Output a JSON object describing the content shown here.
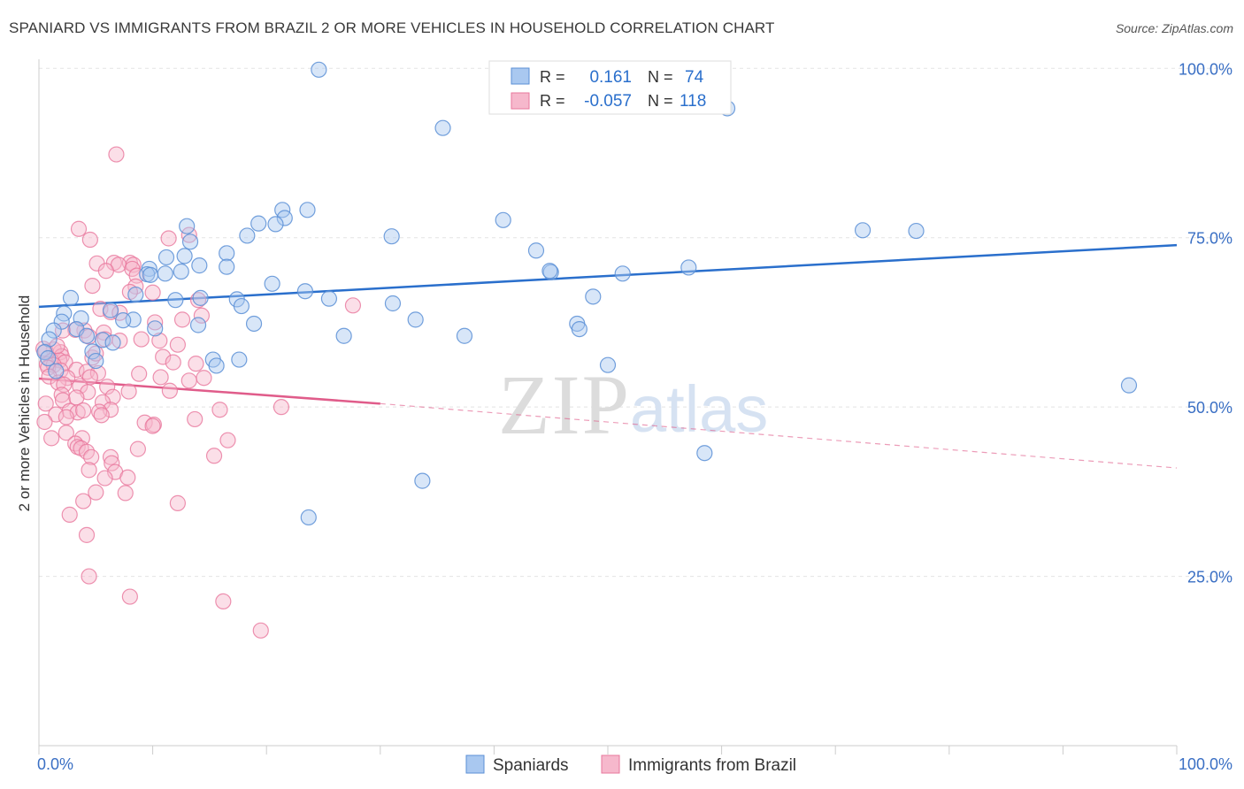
{
  "title": "SPANIARD VS IMMIGRANTS FROM BRAZIL 2 OR MORE VEHICLES IN HOUSEHOLD CORRELATION CHART",
  "source": "Source: ZipAtlas.com",
  "watermark": {
    "zip": "ZIP",
    "atlas": "atlas"
  },
  "colors": {
    "blue_fill": "#a9c8f0",
    "blue_stroke": "#5b8fd6",
    "blue_line": "#2a6fcc",
    "pink_fill": "#f6b8cc",
    "pink_stroke": "#e8779c",
    "pink_line": "#e05c8a",
    "axis_text": "#3a6fc4",
    "grid": "#e3e3e3"
  },
  "stats_box": {
    "rows": [
      {
        "r_label": "R =",
        "r_value": "0.161",
        "n_label": "N =",
        "n_value": "74"
      },
      {
        "r_label": "R =",
        "r_value": "-0.057",
        "n_label": "N =",
        "n_value": "118"
      }
    ]
  },
  "legend": {
    "items": [
      "Spaniards",
      "Immigrants from Brazil"
    ]
  },
  "chart_data": {
    "type": "scatter",
    "title": "SPANIARD VS IMMIGRANTS FROM BRAZIL 2 OR MORE VEHICLES IN HOUSEHOLD CORRELATION CHART",
    "xlabel": "",
    "ylabel": "2 or more Vehicles in Household",
    "xlim": [
      0,
      100
    ],
    "ylim": [
      0,
      105
    ],
    "x_tick_labels": [
      "0.0%",
      "100.0%"
    ],
    "y_tick_labels": [
      "25.0%",
      "50.0%",
      "75.0%",
      "100.0%"
    ],
    "y_ticks": [
      25,
      50,
      75,
      100
    ],
    "grid": true,
    "legend_position": "bottom",
    "series": [
      {
        "name": "Spaniards",
        "r": 0.161,
        "n": 74,
        "trend": {
          "x": [
            0,
            100
          ],
          "y": [
            64.8,
            73.9
          ]
        },
        "points": [
          [
            24.6,
            99.8
          ],
          [
            35.5,
            91.2
          ],
          [
            60.5,
            94.1
          ],
          [
            23.6,
            79.1
          ],
          [
            21.4,
            79.1
          ],
          [
            21.6,
            77.9
          ],
          [
            19.3,
            77.1
          ],
          [
            20.8,
            77.0
          ],
          [
            13.0,
            76.7
          ],
          [
            40.8,
            77.6
          ],
          [
            31.0,
            75.2
          ],
          [
            18.3,
            75.3
          ],
          [
            43.7,
            73.1
          ],
          [
            77.1,
            76.0
          ],
          [
            72.4,
            76.1
          ],
          [
            13.3,
            74.4
          ],
          [
            12.8,
            72.3
          ],
          [
            16.5,
            72.7
          ],
          [
            11.2,
            72.1
          ],
          [
            16.5,
            70.7
          ],
          [
            14.1,
            70.9
          ],
          [
            9.7,
            70.4
          ],
          [
            9.5,
            69.6
          ],
          [
            11.1,
            69.7
          ],
          [
            9.8,
            69.5
          ],
          [
            45.0,
            69.9
          ],
          [
            51.3,
            69.7
          ],
          [
            57.1,
            70.6
          ],
          [
            20.5,
            68.2
          ],
          [
            23.4,
            67.1
          ],
          [
            8.5,
            66.6
          ],
          [
            2.8,
            66.1
          ],
          [
            12.0,
            65.8
          ],
          [
            17.4,
            65.9
          ],
          [
            14.2,
            66.1
          ],
          [
            25.5,
            66.0
          ],
          [
            31.1,
            65.3
          ],
          [
            48.7,
            66.3
          ],
          [
            17.8,
            64.9
          ],
          [
            6.3,
            64.3
          ],
          [
            2.2,
            63.8
          ],
          [
            3.7,
            63.1
          ],
          [
            8.3,
            62.9
          ],
          [
            7.4,
            62.8
          ],
          [
            2.0,
            62.6
          ],
          [
            10.2,
            61.6
          ],
          [
            14.0,
            62.1
          ],
          [
            18.9,
            62.3
          ],
          [
            33.1,
            62.9
          ],
          [
            47.3,
            62.3
          ],
          [
            47.5,
            61.5
          ],
          [
            1.3,
            61.3
          ],
          [
            3.3,
            61.5
          ],
          [
            4.2,
            60.5
          ],
          [
            26.8,
            60.5
          ],
          [
            37.4,
            60.5
          ],
          [
            0.9,
            60.0
          ],
          [
            5.6,
            59.9
          ],
          [
            6.5,
            59.5
          ],
          [
            4.7,
            58.2
          ],
          [
            0.5,
            58.1
          ],
          [
            15.3,
            57.0
          ],
          [
            17.6,
            57.0
          ],
          [
            15.6,
            56.1
          ],
          [
            50.0,
            56.2
          ],
          [
            95.8,
            53.2
          ],
          [
            58.5,
            43.2
          ],
          [
            33.7,
            39.1
          ],
          [
            23.7,
            33.7
          ],
          [
            1.5,
            55.3
          ],
          [
            0.8,
            57.2
          ],
          [
            12.5,
            70.0
          ],
          [
            44.9,
            70.1
          ],
          [
            5.0,
            56.8
          ]
        ]
      },
      {
        "name": "Immigrants from Brazil",
        "r": -0.057,
        "n": 118,
        "trend_solid": {
          "x": [
            0,
            30
          ],
          "y": [
            54.2,
            50.5
          ]
        },
        "trend_dashed": {
          "x": [
            30,
            100
          ],
          "y": [
            50.5,
            41.0
          ]
        },
        "points": [
          [
            6.8,
            87.3
          ],
          [
            3.5,
            76.3
          ],
          [
            4.5,
            74.7
          ],
          [
            11.4,
            74.9
          ],
          [
            13.2,
            75.4
          ],
          [
            5.1,
            71.2
          ],
          [
            6.6,
            71.3
          ],
          [
            8.0,
            71.3
          ],
          [
            7.0,
            71.0
          ],
          [
            8.3,
            71.0
          ],
          [
            8.2,
            70.4
          ],
          [
            5.9,
            70.1
          ],
          [
            8.6,
            69.4
          ],
          [
            8.5,
            67.8
          ],
          [
            4.7,
            67.9
          ],
          [
            8.0,
            67.0
          ],
          [
            10.0,
            66.9
          ],
          [
            14.0,
            65.8
          ],
          [
            27.6,
            65.0
          ],
          [
            5.4,
            64.5
          ],
          [
            6.3,
            64.0
          ],
          [
            7.1,
            63.9
          ],
          [
            10.2,
            62.5
          ],
          [
            12.6,
            62.9
          ],
          [
            14.3,
            63.5
          ],
          [
            4.0,
            61.3
          ],
          [
            5.7,
            61.0
          ],
          [
            3.2,
            61.4
          ],
          [
            2.1,
            61.3
          ],
          [
            4.4,
            60.4
          ],
          [
            5.8,
            60.0
          ],
          [
            7.1,
            59.8
          ],
          [
            9.0,
            60.0
          ],
          [
            10.6,
            59.8
          ],
          [
            12.2,
            59.2
          ],
          [
            1.9,
            58.1
          ],
          [
            1.3,
            58.5
          ],
          [
            0.6,
            58.2
          ],
          [
            2.0,
            57.5
          ],
          [
            4.7,
            57.3
          ],
          [
            5.0,
            57.9
          ],
          [
            10.9,
            57.4
          ],
          [
            1.1,
            56.8
          ],
          [
            1.8,
            56.9
          ],
          [
            2.3,
            56.6
          ],
          [
            0.7,
            56.3
          ],
          [
            1.3,
            56.2
          ],
          [
            11.8,
            56.6
          ],
          [
            13.8,
            56.4
          ],
          [
            0.8,
            55.8
          ],
          [
            1.9,
            55.4
          ],
          [
            3.3,
            55.5
          ],
          [
            4.2,
            55.2
          ],
          [
            5.2,
            55.0
          ],
          [
            0.9,
            54.5
          ],
          [
            4.5,
            54.4
          ],
          [
            2.5,
            54.3
          ],
          [
            10.7,
            54.4
          ],
          [
            14.5,
            54.3
          ],
          [
            1.7,
            53.6
          ],
          [
            2.2,
            53.3
          ],
          [
            6.0,
            53.0
          ],
          [
            3.6,
            53.1
          ],
          [
            4.3,
            52.2
          ],
          [
            7.9,
            52.3
          ],
          [
            2.0,
            51.8
          ],
          [
            2.1,
            51.0
          ],
          [
            0.6,
            50.5
          ],
          [
            6.5,
            51.5
          ],
          [
            3.3,
            51.4
          ],
          [
            5.6,
            50.7
          ],
          [
            6.3,
            49.6
          ],
          [
            2.7,
            49.4
          ],
          [
            3.4,
            49.2
          ],
          [
            1.5,
            48.9
          ],
          [
            2.4,
            48.5
          ],
          [
            3.9,
            49.5
          ],
          [
            5.3,
            49.3
          ],
          [
            5.5,
            48.8
          ],
          [
            15.9,
            49.6
          ],
          [
            21.3,
            50.0
          ],
          [
            13.7,
            48.2
          ],
          [
            0.5,
            47.8
          ],
          [
            9.3,
            47.7
          ],
          [
            10.1,
            47.4
          ],
          [
            10.0,
            47.2
          ],
          [
            2.4,
            46.2
          ],
          [
            3.8,
            45.4
          ],
          [
            1.1,
            45.4
          ],
          [
            16.6,
            45.1
          ],
          [
            3.2,
            44.6
          ],
          [
            3.4,
            44.1
          ],
          [
            8.7,
            43.8
          ],
          [
            3.7,
            43.9
          ],
          [
            4.2,
            43.4
          ],
          [
            6.3,
            42.6
          ],
          [
            4.6,
            42.6
          ],
          [
            15.4,
            42.8
          ],
          [
            6.4,
            41.7
          ],
          [
            4.4,
            40.7
          ],
          [
            6.7,
            40.4
          ],
          [
            5.8,
            39.5
          ],
          [
            7.8,
            39.6
          ],
          [
            5.0,
            37.4
          ],
          [
            7.6,
            37.3
          ],
          [
            3.9,
            36.1
          ],
          [
            12.2,
            35.8
          ],
          [
            2.7,
            34.1
          ],
          [
            4.2,
            31.1
          ],
          [
            4.4,
            25.0
          ],
          [
            8.0,
            22.0
          ],
          [
            16.2,
            21.3
          ],
          [
            19.5,
            17.0
          ],
          [
            0.4,
            58.6
          ],
          [
            1.6,
            59.0
          ],
          [
            8.8,
            54.9
          ],
          [
            11.5,
            52.4
          ],
          [
            13.2,
            53.9
          ]
        ]
      }
    ]
  }
}
